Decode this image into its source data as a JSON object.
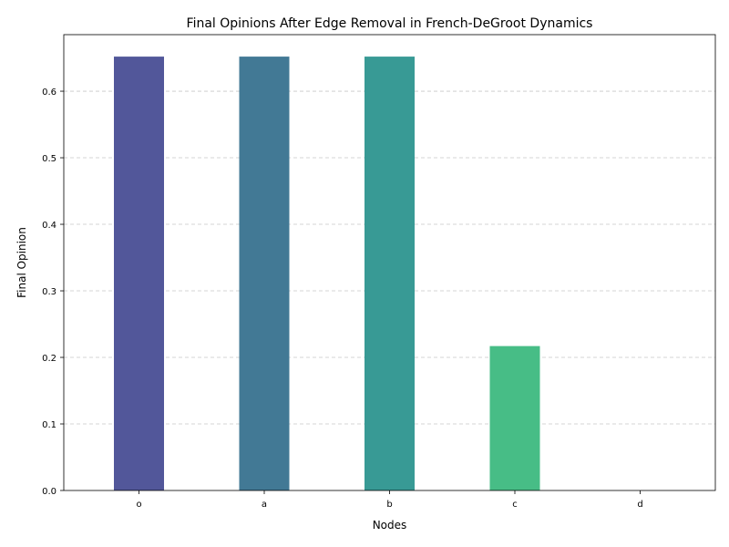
{
  "chart_data": {
    "type": "bar",
    "title": "Final Opinions After Edge Removal in French-DeGroot Dynamics",
    "xlabel": "Nodes",
    "ylabel": "Final Opinion",
    "categories": [
      "o",
      "a",
      "b",
      "c",
      "d"
    ],
    "values": [
      0.652,
      0.652,
      0.652,
      0.217,
      0.0
    ],
    "colors": [
      "#52579a",
      "#427995",
      "#389a95",
      "#47bd86",
      "#7ad151"
    ],
    "ylim": [
      0,
      0.685
    ],
    "yticks": [
      "0.0",
      "0.1",
      "0.2",
      "0.3",
      "0.4",
      "0.5",
      "0.6"
    ],
    "grid": "y-dashed",
    "legend": "none"
  }
}
